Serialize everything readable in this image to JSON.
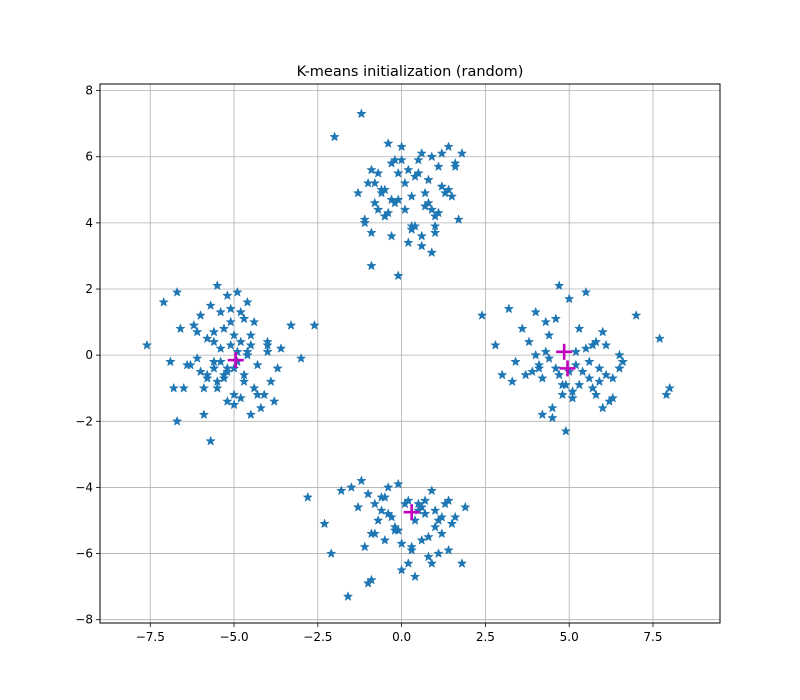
{
  "chart_data": {
    "type": "scatter",
    "title": "K-means initialization (random)",
    "xlabel": "",
    "ylabel": "",
    "xlim": [
      -9.0,
      9.5
    ],
    "ylim": [
      -8.1,
      8.2
    ],
    "xticks": [
      -7.5,
      -5.0,
      -2.5,
      0.0,
      2.5,
      5.0,
      7.5
    ],
    "xtick_labels": [
      "−7.5",
      "−5.0",
      "−2.5",
      "0.0",
      "2.5",
      "5.0",
      "7.5"
    ],
    "yticks": [
      -8,
      -6,
      -4,
      -2,
      0,
      2,
      4,
      6,
      8
    ],
    "ytick_labels": [
      "−8",
      "−6",
      "−4",
      "−2",
      "0",
      "2",
      "4",
      "6",
      "8"
    ],
    "grid": true,
    "series": [
      {
        "marker": "star",
        "color": "#1f77b4",
        "x": [
          -7.6,
          -7.1,
          -6.9,
          -6.7,
          -6.8,
          -6.7,
          -6.6,
          -6.4,
          -6.2,
          -6.1,
          -6.0,
          -5.9,
          -5.8,
          -5.8,
          -5.7,
          -5.7,
          -5.6,
          -5.6,
          -5.5,
          -5.5,
          -5.4,
          -5.4,
          -5.3,
          -5.3,
          -5.2,
          -5.2,
          -5.1,
          -5.1,
          -5.0,
          -5.0,
          -4.9,
          -4.9,
          -4.8,
          -4.8,
          -4.7,
          -4.7,
          -4.6,
          -4.6,
          -4.5,
          -4.5,
          -4.4,
          -4.4,
          -4.3,
          -4.2,
          -4.1,
          -4.0,
          -3.9,
          -3.8,
          -3.7,
          -3.6,
          -3.3,
          -3.0,
          -2.6,
          -5.9,
          -5.6,
          -5.2,
          -4.7,
          -4.3,
          -5.5,
          -5.0,
          -4.5,
          -6.0,
          -5.3,
          -4.8,
          -4.9,
          -5.6,
          -6.5,
          -4.0,
          -5.1,
          -5.8,
          -6.3,
          -4.6,
          -5.2,
          -4.0,
          -5.0,
          -5.4,
          -6.1,
          -2.0,
          -1.2,
          -1.0,
          -1.3,
          -1.1,
          -0.9,
          -0.8,
          -0.7,
          -0.6,
          -0.5,
          -0.4,
          -0.3,
          -0.2,
          -0.1,
          0.0,
          0.1,
          0.2,
          0.3,
          0.4,
          0.5,
          0.6,
          0.7,
          0.8,
          0.9,
          1.0,
          1.1,
          1.2,
          1.3,
          1.4,
          1.5,
          1.6,
          1.7,
          1.8,
          -0.9,
          -0.7,
          -0.5,
          -0.3,
          -0.1,
          0.1,
          0.3,
          0.5,
          0.7,
          0.9,
          1.1,
          -1.1,
          -0.6,
          -0.2,
          0.2,
          0.6,
          1.0,
          1.4,
          -0.8,
          -0.4,
          0.0,
          0.4,
          0.8,
          1.2,
          -0.3,
          0.3,
          0.9,
          -0.9,
          1.6,
          -0.5,
          0.6,
          -0.1,
          1.0,
          2.4,
          2.8,
          3.0,
          3.2,
          3.4,
          3.6,
          3.8,
          3.9,
          4.0,
          4.1,
          4.2,
          4.3,
          4.4,
          4.5,
          4.6,
          4.7,
          4.8,
          4.9,
          5.0,
          5.1,
          5.2,
          5.3,
          5.4,
          5.5,
          5.6,
          5.7,
          5.8,
          5.9,
          6.0,
          6.1,
          6.2,
          6.3,
          6.5,
          6.6,
          7.0,
          7.7,
          7.9,
          8.0,
          3.3,
          3.7,
          4.1,
          4.5,
          4.9,
          5.3,
          5.7,
          6.1,
          6.5,
          4.3,
          4.7,
          5.1,
          5.5,
          5.9,
          6.3,
          4.0,
          4.4,
          4.8,
          5.2,
          5.6,
          6.0,
          5.0,
          4.2,
          5.8,
          4.6,
          -2.8,
          -2.3,
          -2.1,
          -1.8,
          -1.6,
          -1.5,
          -1.3,
          -1.2,
          -1.1,
          -1.0,
          -0.9,
          -0.8,
          -0.7,
          -0.6,
          -0.5,
          -0.4,
          -0.3,
          -0.2,
          -0.1,
          0.0,
          0.1,
          0.2,
          0.3,
          0.4,
          0.5,
          0.6,
          0.7,
          0.8,
          0.9,
          1.0,
          1.1,
          1.2,
          1.3,
          1.4,
          1.5,
          1.6,
          1.8,
          1.9,
          -1.0,
          -0.6,
          -0.2,
          0.2,
          0.6,
          1.0,
          1.4,
          -0.8,
          -0.4,
          0.0,
          0.4,
          0.8,
          1.2,
          -0.5,
          0.3,
          0.9,
          -0.1,
          0.5,
          1.1,
          -0.9,
          0.7
        ],
        "y": [
          0.3,
          1.6,
          -0.2,
          1.9,
          -1.0,
          -2.0,
          0.8,
          -0.3,
          0.9,
          -0.1,
          1.2,
          -1.8,
          -0.6,
          0.5,
          -2.6,
          1.5,
          -0.4,
          0.7,
          2.1,
          -1.0,
          0.2,
          1.3,
          -0.7,
          0.8,
          1.8,
          -0.5,
          0.3,
          1.0,
          -1.5,
          0.6,
          1.9,
          -0.2,
          -1.3,
          0.4,
          1.1,
          -0.8,
          0.0,
          1.6,
          -1.8,
          0.6,
          -1.0,
          1.0,
          -0.3,
          -1.6,
          -1.2,
          0.1,
          -0.8,
          -1.4,
          -0.4,
          0.2,
          0.9,
          -0.1,
          0.9,
          -1.0,
          -0.2,
          -1.4,
          -0.6,
          -1.2,
          -0.8,
          -0.4,
          0.3,
          -0.5,
          -0.6,
          1.3,
          0.1,
          0.4,
          -1.0,
          0.4,
          1.4,
          -0.7,
          -0.3,
          0.1,
          -0.4,
          0.3,
          -1.2,
          -0.2,
          0.7,
          6.6,
          7.3,
          5.2,
          4.9,
          4.0,
          3.7,
          4.6,
          5.5,
          5.0,
          4.2,
          6.4,
          3.6,
          5.9,
          4.7,
          6.3,
          4.4,
          5.6,
          4.8,
          3.9,
          5.9,
          6.1,
          4.5,
          5.3,
          6.0,
          4.2,
          5.7,
          6.1,
          4.9,
          6.3,
          4.8,
          5.8,
          4.1,
          6.1,
          5.6,
          4.4,
          5.0,
          4.7,
          5.5,
          5.2,
          3.8,
          5.5,
          4.9,
          3.1,
          4.3,
          4.1,
          4.9,
          4.6,
          3.4,
          3.6,
          3.7,
          5.0,
          5.2,
          4.3,
          5.9,
          5.4,
          4.6,
          5.1,
          5.8,
          3.9,
          4.4,
          2.7,
          5.7,
          4.2,
          3.3,
          2.4,
          3.9,
          1.2,
          0.3,
          -0.6,
          1.4,
          -0.2,
          0.8,
          0.4,
          -0.5,
          1.3,
          -0.3,
          -0.7,
          1.0,
          -0.1,
          -1.6,
          1.1,
          2.1,
          -1.2,
          -0.9,
          1.7,
          -1.3,
          0.1,
          0.8,
          -0.5,
          1.9,
          -0.2,
          -1.0,
          0.4,
          -0.8,
          0.7,
          -0.6,
          -1.4,
          -1.3,
          0.0,
          -0.2,
          1.2,
          0.5,
          -1.2,
          -1.0,
          -0.8,
          -0.6,
          -0.4,
          -1.9,
          -2.3,
          -0.9,
          0.3,
          0.3,
          -0.4,
          0.1,
          -0.6,
          -1.1,
          0.2,
          -0.4,
          -0.7,
          0.0,
          0.6,
          -0.9,
          -0.3,
          -0.7,
          -1.6,
          -0.5,
          -1.8,
          -1.2,
          -0.4,
          -4.3,
          -5.1,
          -6.0,
          -4.1,
          -7.3,
          -4.0,
          -4.6,
          -3.8,
          -5.8,
          -6.9,
          -5.4,
          -4.5,
          -5.0,
          -4.3,
          -5.6,
          -4.0,
          -4.9,
          -5.2,
          -3.9,
          -6.5,
          -4.5,
          -6.3,
          -5.9,
          -6.7,
          -4.5,
          -5.6,
          -4.8,
          -6.1,
          -6.3,
          -4.7,
          -6.0,
          -5.4,
          -4.5,
          -5.9,
          -5.1,
          -4.9,
          -6.3,
          -4.6,
          -4.2,
          -4.7,
          -5.3,
          -4.4,
          -4.6,
          -5.2,
          -4.4,
          -5.4,
          -4.8,
          -5.7,
          -5.0,
          -5.5,
          -4.9,
          -4.3,
          -5.8,
          -4.1,
          -5.3,
          -4.7,
          -5.0,
          -6.8,
          -4.4
        ]
      },
      {
        "name": "",
        "marker": "plus",
        "color": "#bf00bf",
        "x": [
          -4.95,
          0.3,
          4.85,
          4.95
        ],
        "y": [
          -0.15,
          -4.75,
          0.1,
          -0.4
        ]
      }
    ]
  }
}
